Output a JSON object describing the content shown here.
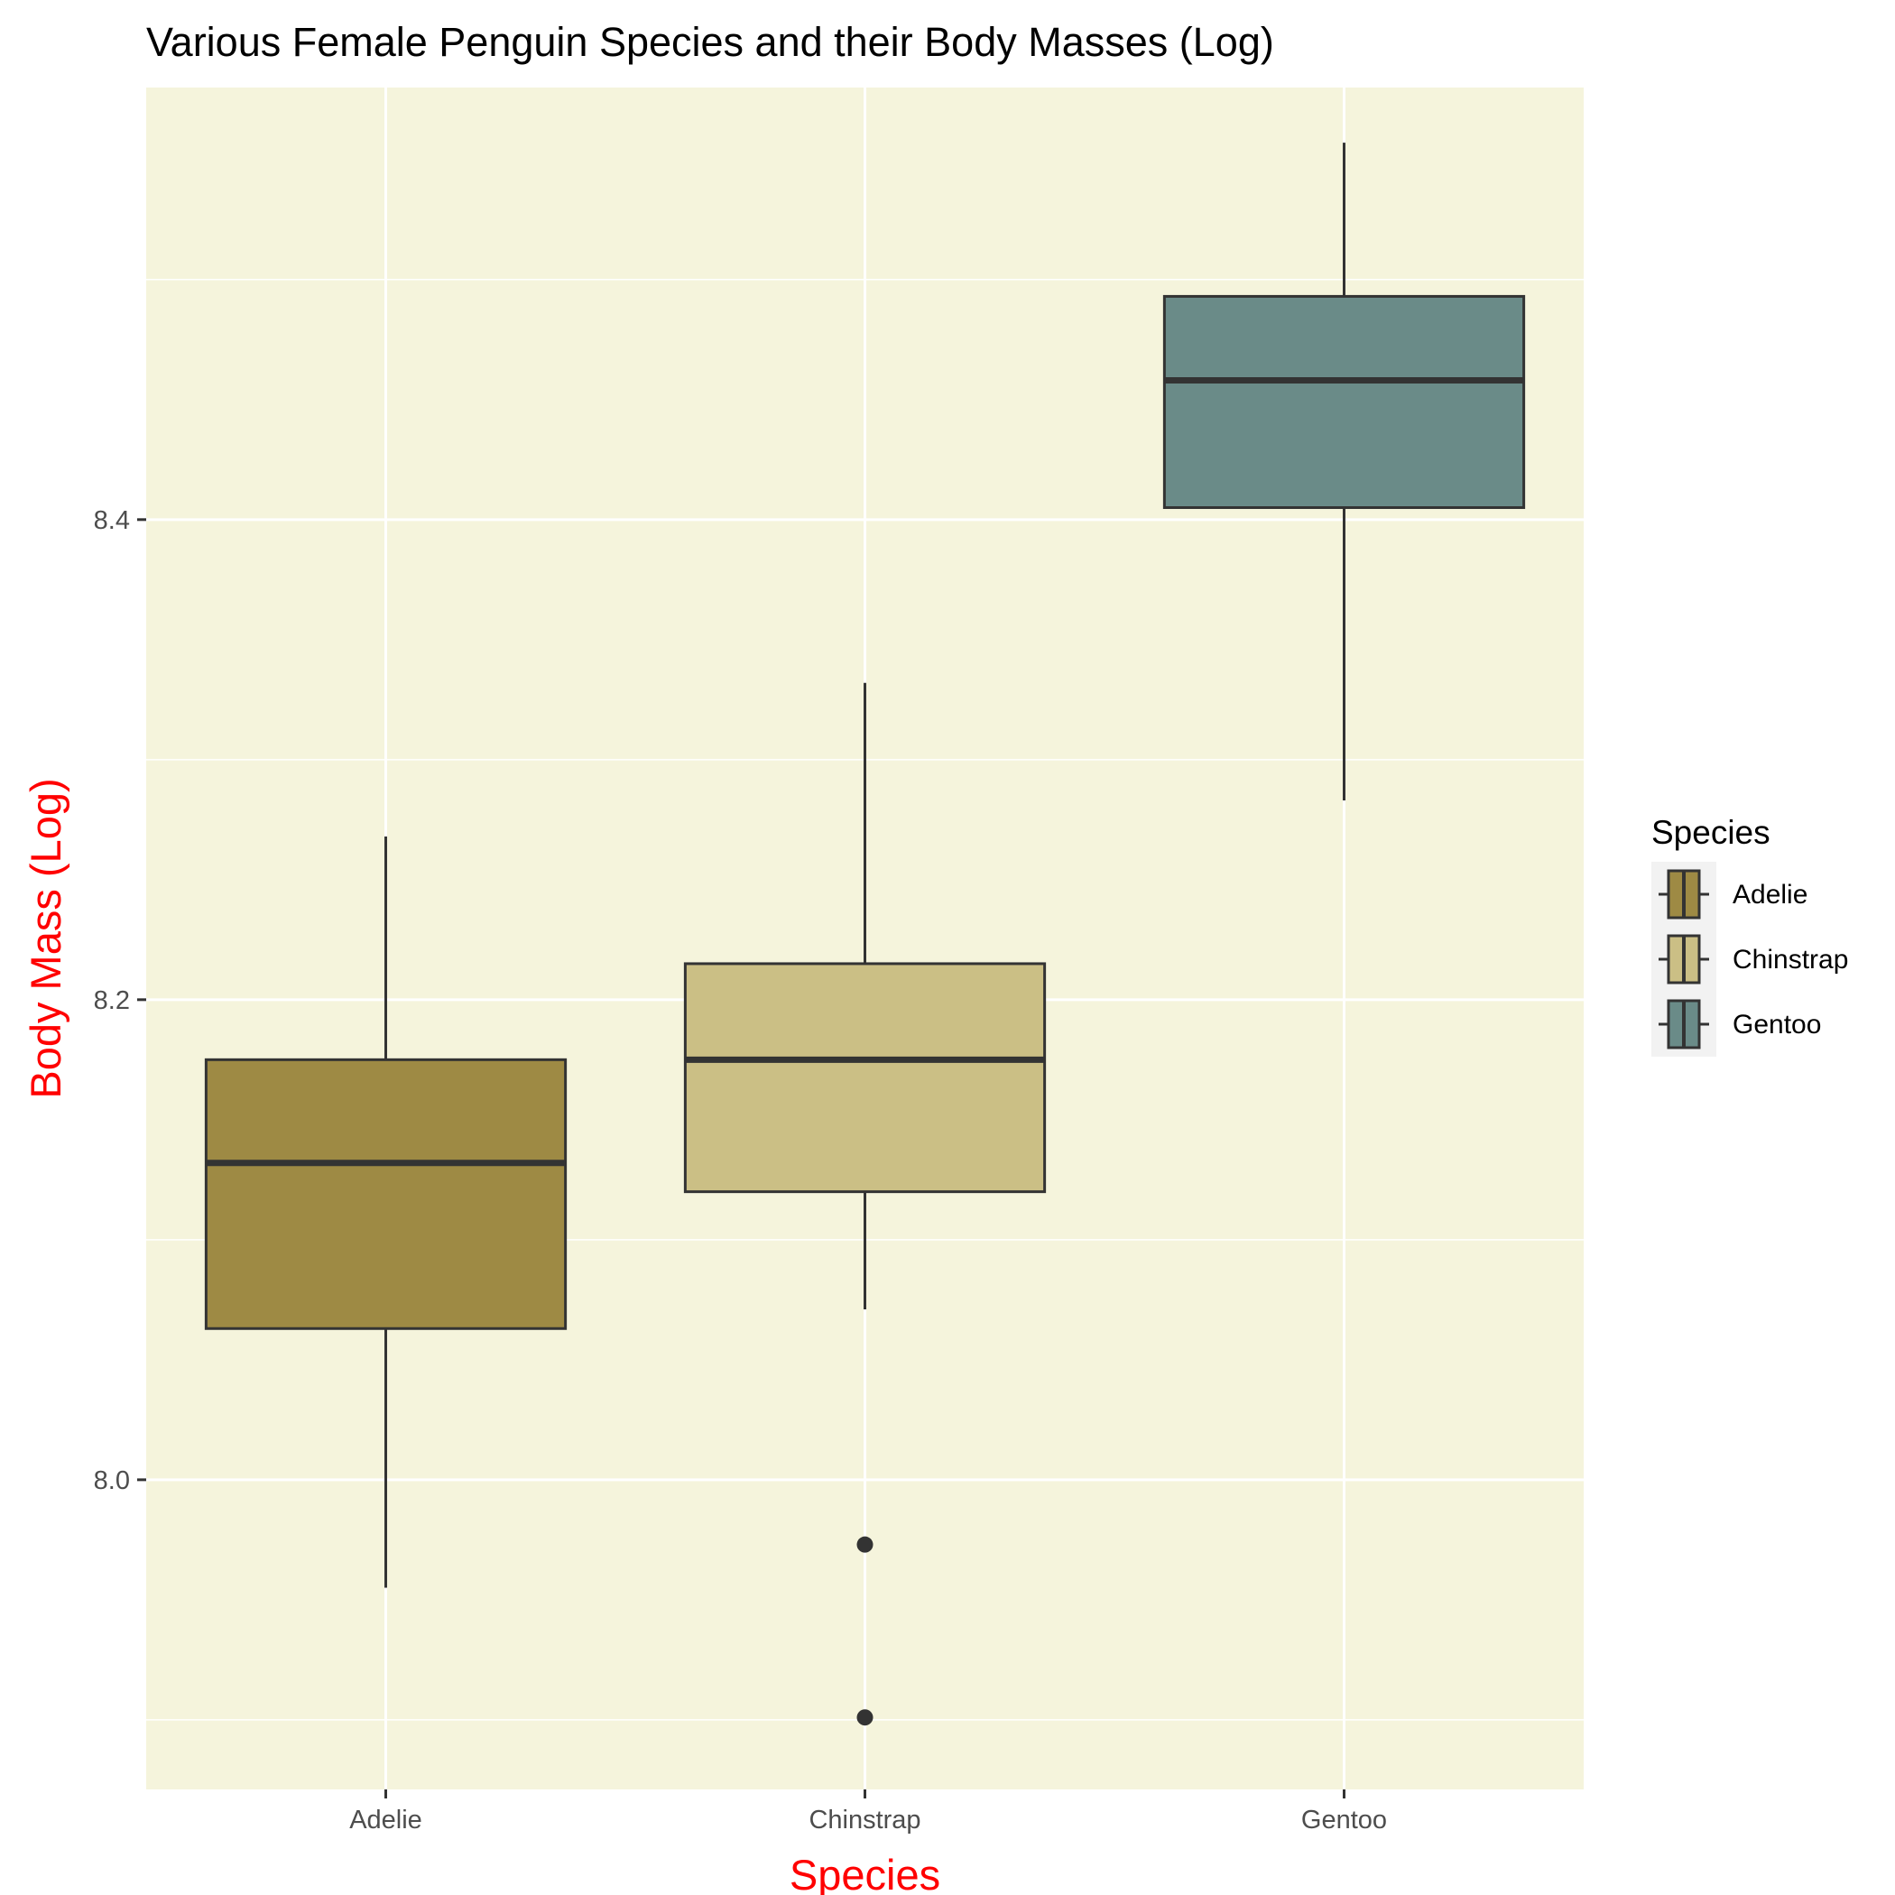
{
  "chart_data": {
    "type": "boxplot",
    "title": "Various Female Penguin Species and their Body Masses (Log)",
    "xlabel": "Species",
    "ylabel": "Body Mass (Log)",
    "ylim": [
      7.871,
      8.58
    ],
    "yticks": [
      8.0,
      8.2,
      8.4
    ],
    "ytick_labels": [
      "8.0",
      "8.2",
      "8.4"
    ],
    "minor_gridlines": [
      7.9,
      8.1,
      8.3,
      8.5
    ],
    "categories": [
      "Adelie",
      "Chinstrap",
      "Gentoo"
    ],
    "boxes": [
      {
        "name": "Adelie",
        "color": "#9e8a44",
        "whisker_low": 7.955,
        "q1": 8.063,
        "median": 8.132,
        "q3": 8.175,
        "whisker_high": 8.268,
        "outliers": []
      },
      {
        "name": "Chinstrap",
        "color": "#cbbf85",
        "whisker_low": 8.071,
        "q1": 8.12,
        "median": 8.175,
        "q3": 8.215,
        "whisker_high": 8.332,
        "outliers": [
          7.973,
          7.901
        ]
      },
      {
        "name": "Gentoo",
        "color": "#6a8b88",
        "whisker_low": 8.283,
        "q1": 8.405,
        "median": 8.458,
        "q3": 8.493,
        "whisker_high": 8.557,
        "outliers": []
      }
    ],
    "legend": {
      "title": "Species",
      "position": "right",
      "items": [
        "Adelie",
        "Chinstrap",
        "Gentoo"
      ]
    },
    "panel_color": "#f5f4dc",
    "grid": true
  }
}
